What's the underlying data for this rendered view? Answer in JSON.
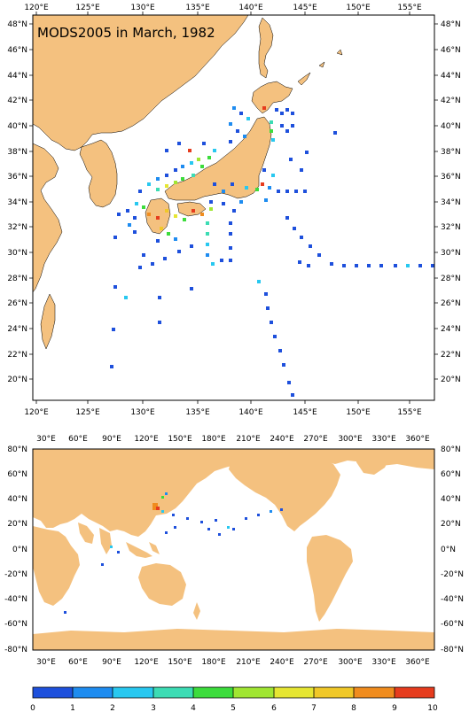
{
  "title": "MODS2005 in March, 1982",
  "colors": {
    "land": "#f4c17f",
    "ocean": "#ffffff",
    "frame": "#000000"
  },
  "top_map": {
    "lon_labels": [
      "120°E",
      "125°E",
      "130°E",
      "135°E",
      "140°E",
      "145°E",
      "150°E",
      "155°E"
    ],
    "lat_labels": [
      "48°N",
      "46°N",
      "44°N",
      "42°N",
      "40°N",
      "38°N",
      "36°N",
      "34°N",
      "32°N",
      "30°N",
      "28°N",
      "26°N",
      "24°N",
      "22°N",
      "20°N"
    ]
  },
  "bottom_map": {
    "lon_labels": [
      "30°E",
      "60°E",
      "90°E",
      "120°E",
      "150°E",
      "180°E",
      "210°E",
      "240°E",
      "270°E",
      "300°E",
      "330°E",
      "360°E"
    ],
    "lat_labels": [
      "80°N",
      "60°N",
      "40°N",
      "20°N",
      "0°N",
      "-20°N",
      "-40°N",
      "-60°N",
      "-80°N"
    ]
  },
  "colorbar": {
    "labels": [
      "0",
      "1",
      "2",
      "3",
      "4",
      "5",
      "6",
      "7",
      "8",
      "9",
      "10"
    ],
    "colors": [
      "#1e50dc",
      "#1e8cf0",
      "#28c8f0",
      "#3cdcb4",
      "#3cdc3c",
      "#a0e632",
      "#e6e632",
      "#f0c828",
      "#f08c1e",
      "#e63c1e"
    ]
  }
}
